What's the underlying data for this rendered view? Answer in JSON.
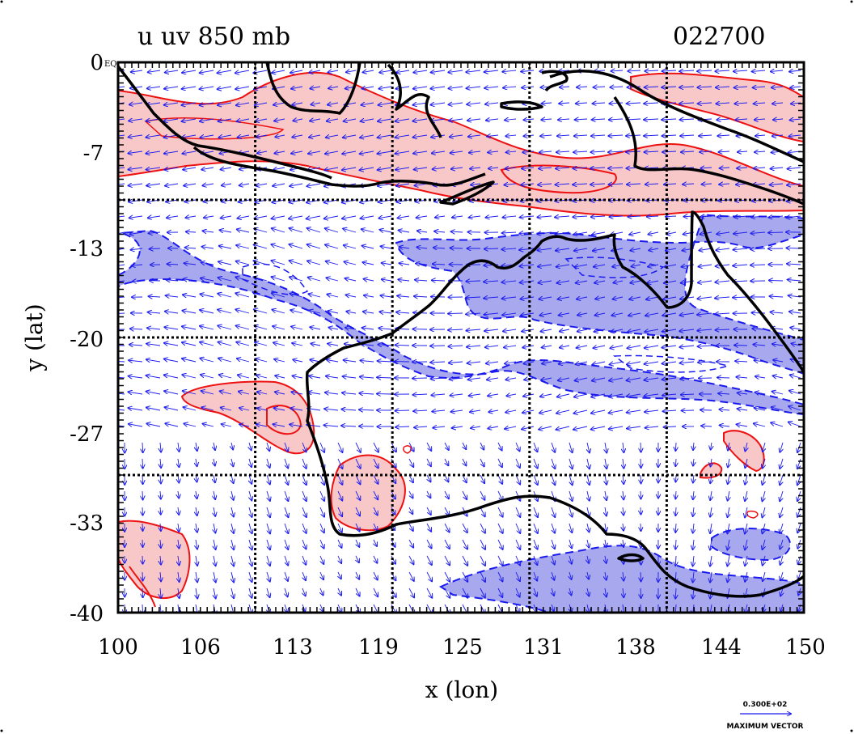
{
  "title": "u uv 850 mb",
  "timestamp": "022700",
  "x_axis": {
    "label": "x (lon)",
    "ticks": [
      "100",
      "106",
      "113",
      "119",
      "125",
      "131",
      "138",
      "144",
      "150"
    ]
  },
  "y_axis": {
    "label": "y (lat)",
    "ticks": [
      "0",
      "-7",
      "-13",
      "-20",
      "-27",
      "-33",
      "-40"
    ]
  },
  "eq_label": "EQ",
  "reference_vector": {
    "magnitude": "0.300E+02",
    "caption": "MAXIMUM VECTOR"
  },
  "colors": {
    "positive_fill": "#f8c8c8",
    "positive_contour": "#ee1111",
    "negative_fill": "#a8a8ee",
    "negative_contour": "#1a1aee",
    "coastline": "#000000",
    "vectors": "#1a1aee"
  },
  "map_extent": {
    "lon": [
      100,
      150
    ],
    "lat": [
      -40,
      0
    ]
  },
  "grid_lines": {
    "lon": [
      110,
      120,
      130,
      140
    ],
    "lat": [
      -10,
      -20,
      -30
    ]
  }
}
